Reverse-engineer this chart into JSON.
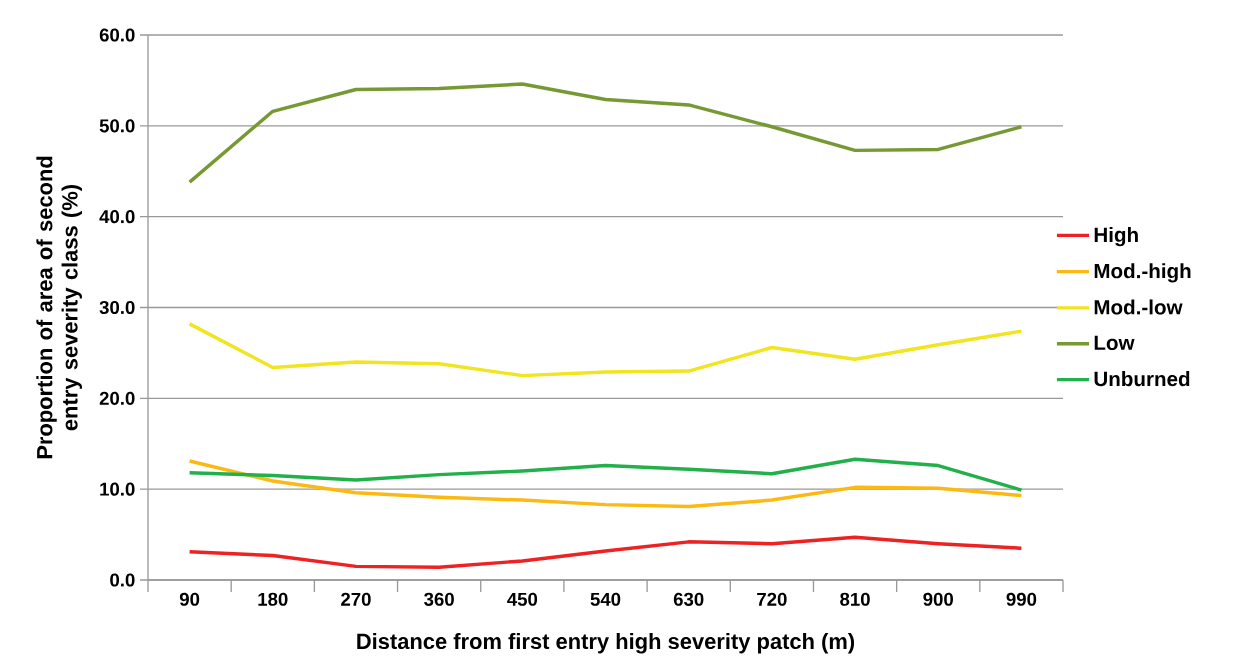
{
  "chart_data": {
    "type": "line",
    "xlabel": "Distance from first entry high severity patch (m)",
    "ylabel": "Proportion of area of second entry severity class (%)",
    "categories": [
      "90",
      "180",
      "270",
      "360",
      "450",
      "540",
      "630",
      "720",
      "810",
      "900",
      "990"
    ],
    "ylim": [
      0,
      60
    ],
    "yticks": [
      {
        "value": 0,
        "label": "0.0"
      },
      {
        "value": 10,
        "label": "10.0"
      },
      {
        "value": 20,
        "label": "20.0"
      },
      {
        "value": 30,
        "label": "30.0"
      },
      {
        "value": 40,
        "label": "40.0"
      },
      {
        "value": 50,
        "label": "50.0"
      },
      {
        "value": 60,
        "label": "60.0"
      }
    ],
    "grid": "y",
    "legend": "right",
    "marker": "none",
    "line_style": "solid",
    "series": [
      {
        "name": "High",
        "color": "#ee2222",
        "values": [
          3.1,
          2.7,
          1.5,
          1.4,
          2.1,
          3.2,
          4.2,
          4.0,
          4.7,
          4.0,
          3.5
        ]
      },
      {
        "name": "Mod.-high",
        "color": "#fdb913",
        "values": [
          13.1,
          10.9,
          9.6,
          9.1,
          8.8,
          8.3,
          8.1,
          8.8,
          10.2,
          10.1,
          9.3
        ]
      },
      {
        "name": "Mod.-low",
        "color": "#f0e51e",
        "values": [
          28.2,
          23.4,
          24.0,
          23.8,
          22.5,
          22.9,
          23.0,
          25.6,
          24.3,
          25.9,
          27.4
        ]
      },
      {
        "name": "Low",
        "color": "#779933",
        "values": [
          43.8,
          51.6,
          54.0,
          54.1,
          54.6,
          52.9,
          52.3,
          49.9,
          47.3,
          47.4,
          49.9
        ]
      },
      {
        "name": "Unburned",
        "color": "#22b04a",
        "values": [
          11.8,
          11.5,
          11.0,
          11.6,
          12.0,
          12.6,
          12.2,
          11.7,
          13.3,
          12.6,
          9.9
        ]
      }
    ]
  }
}
